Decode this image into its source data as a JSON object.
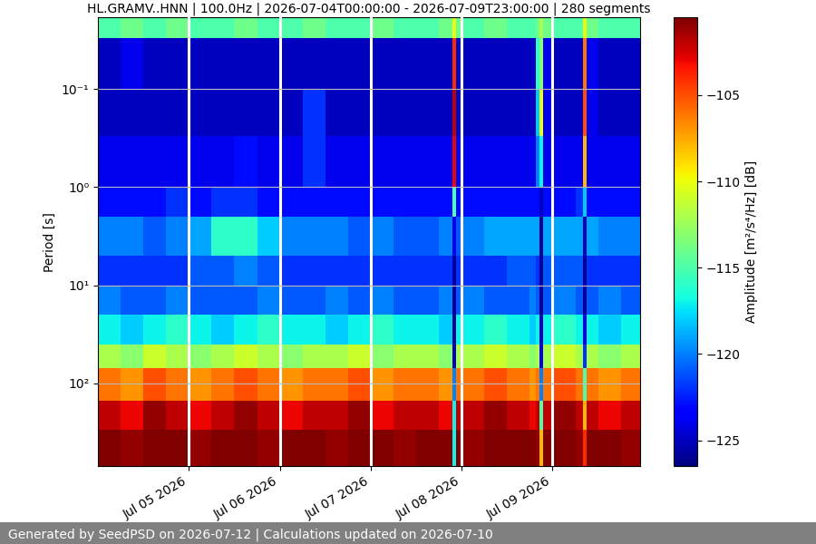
{
  "chart_data": {
    "type": "heatmap",
    "title": "HL.GRAMV..HNN | 100.0Hz | 2026-07-04T00:00:00 - 2026-07-09T23:00:00 | 280 segments",
    "ylabel": "Period [s]",
    "footer": "Generated by SeedPSD on 2026-07-12 | Calculations updated on 2026-07-10",
    "log": "y",
    "grid": true,
    "x_edges": [
      "2026-07-04T00:00",
      "2026-07-04T06:00",
      "2026-07-04T12:00",
      "2026-07-04T18:00",
      "2026-07-05T00:00",
      "2026-07-05T06:00",
      "2026-07-05T12:00",
      "2026-07-05T18:00",
      "2026-07-06T00:00",
      "2026-07-06T06:00",
      "2026-07-06T12:00",
      "2026-07-06T18:00",
      "2026-07-07T00:00",
      "2026-07-07T06:00",
      "2026-07-07T12:00",
      "2026-07-07T18:00",
      "2026-07-07T21:30",
      "2026-07-07T22:30",
      "2026-07-08T00:00",
      "2026-07-08T06:00",
      "2026-07-08T12:00",
      "2026-07-08T18:00",
      "2026-07-08T19:30",
      "2026-07-08T20:30",
      "2026-07-08T21:30",
      "2026-07-09T00:00",
      "2026-07-09T06:00",
      "2026-07-09T08:00",
      "2026-07-09T09:00",
      "2026-07-09T12:00",
      "2026-07-09T18:00",
      "2026-07-09T23:00"
    ],
    "y_edges": [
      0.0186,
      0.03,
      0.1,
      0.3,
      1,
      2,
      5,
      10,
      20,
      40,
      70,
      150,
      300,
      700
    ],
    "cells": [
      [
        -115,
        -114,
        -115,
        -114,
        -115,
        -115,
        -114,
        -115,
        -115,
        -114,
        -115,
        -115,
        -114,
        -115,
        -115,
        -114,
        -110,
        -114,
        -115,
        -114,
        -115,
        -115,
        -114,
        -112,
        -114,
        -115,
        -115,
        -110,
        -114,
        -115,
        -115
      ],
      [
        -125,
        -124,
        -125,
        -125,
        -125,
        -125,
        -125,
        -125,
        -125,
        -125,
        -125,
        -125,
        -125,
        -125,
        -125,
        -125,
        -104,
        -125,
        -125,
        -125,
        -125,
        -125,
        -116,
        -113,
        -124,
        -125,
        -125,
        -106,
        -124,
        -125,
        -125
      ],
      [
        -125,
        -125,
        -125,
        -125,
        -125,
        -125,
        -125,
        -125,
        -125,
        -122,
        -125,
        -125,
        -125,
        -125,
        -125,
        -125,
        -102,
        -125,
        -125,
        -125,
        -125,
        -125,
        -118,
        -110,
        -124,
        -125,
        -125,
        -105,
        -124,
        -125,
        -125
      ],
      [
        -124,
        -124,
        -124,
        -124,
        -124,
        -124,
        -123,
        -124,
        -124,
        -122,
        -124,
        -124,
        -124,
        -124,
        -124,
        -124,
        -103,
        -124,
        -124,
        -124,
        -124,
        -124,
        -120,
        -117,
        -124,
        -124,
        -124,
        -108,
        -124,
        -124,
        -124
      ],
      [
        -123,
        -123,
        -123,
        -122,
        -123,
        -122,
        -122,
        -123,
        -123,
        -123,
        -123,
        -123,
        -123,
        -123,
        -123,
        -123,
        -115,
        -123,
        -123,
        -123,
        -123,
        -123,
        -123,
        -125,
        -123,
        -123,
        -122,
        -118,
        -123,
        -123,
        -123
      ],
      [
        -120,
        -120,
        -121,
        -120,
        -119,
        -116,
        -116,
        -118,
        -120,
        -120,
        -120,
        -121,
        -120,
        -121,
        -121,
        -120,
        -124,
        -121,
        -120,
        -119,
        -119,
        -119,
        -119,
        -126,
        -119,
        -119,
        -119,
        -125,
        -119,
        -120,
        -120
      ],
      [
        -122,
        -122,
        -122,
        -122,
        -121,
        -121,
        -120,
        -121,
        -122,
        -122,
        -122,
        -122,
        -122,
        -122,
        -122,
        -122,
        -126,
        -122,
        -122,
        -122,
        -121,
        -121,
        -122,
        -126,
        -121,
        -121,
        -121,
        -126,
        -122,
        -122,
        -122
      ],
      [
        -120,
        -121,
        -121,
        -120,
        -121,
        -121,
        -121,
        -120,
        -121,
        -121,
        -120,
        -121,
        -120,
        -121,
        -121,
        -120,
        -126,
        -121,
        -120,
        -121,
        -121,
        -120,
        -121,
        -126,
        -121,
        -120,
        -121,
        -126,
        -121,
        -120,
        -121
      ],
      [
        -117,
        -118,
        -117,
        -116,
        -117,
        -118,
        -117,
        -116,
        -117,
        -117,
        -118,
        -117,
        -116,
        -117,
        -117,
        -118,
        -126,
        -117,
        -117,
        -116,
        -117,
        -118,
        -117,
        -125,
        -117,
        -116,
        -117,
        -124,
        -117,
        -118,
        -117
      ],
      [
        -112,
        -113,
        -111,
        -112,
        -113,
        -112,
        -111,
        -112,
        -113,
        -112,
        -112,
        -111,
        -113,
        -112,
        -112,
        -113,
        -125,
        -112,
        -112,
        -111,
        -112,
        -113,
        -112,
        -124,
        -112,
        -111,
        -112,
        -122,
        -112,
        -113,
        -112
      ],
      [
        -106,
        -107,
        -105,
        -106,
        -107,
        -106,
        -105,
        -106,
        -107,
        -106,
        -106,
        -105,
        -107,
        -106,
        -106,
        -107,
        -120,
        -106,
        -106,
        -105,
        -106,
        -107,
        -106,
        -120,
        -106,
        -105,
        -106,
        -115,
        -106,
        -107,
        -106
      ],
      [
        -102,
        -103,
        -101,
        -102,
        -103,
        -102,
        -101,
        -102,
        -103,
        -102,
        -102,
        -101,
        -103,
        -102,
        -102,
        -103,
        -117,
        -102,
        -102,
        -101,
        -102,
        -103,
        -102,
        -115,
        -102,
        -101,
        -102,
        -108,
        -102,
        -103,
        -102
      ],
      [
        -100,
        -101,
        -100,
        -100,
        -101,
        -100,
        -100,
        -101,
        -100,
        -100,
        -101,
        -100,
        -100,
        -101,
        -100,
        -100,
        -117,
        -100,
        -101,
        -100,
        -100,
        -100,
        -101,
        -108,
        -100,
        -100,
        -101,
        -104,
        -100,
        -100,
        -101
      ]
    ],
    "xlim": [
      "2026-07-04T00:00",
      "2026-07-09T23:00"
    ],
    "xticks": [
      {
        "value": "2026-07-05T00:00",
        "label": "Jul 05 2026"
      },
      {
        "value": "2026-07-06T00:00",
        "label": "Jul 06 2026"
      },
      {
        "value": "2026-07-07T00:00",
        "label": "Jul 07 2026"
      },
      {
        "value": "2026-07-08T00:00",
        "label": "Jul 08 2026"
      },
      {
        "value": "2026-07-09T00:00",
        "label": "Jul 09 2026"
      }
    ],
    "ylim": [
      700,
      0.0186
    ],
    "yticks": [
      {
        "value": 0.1,
        "label": "10⁻¹"
      },
      {
        "value": 1,
        "label": "10⁰"
      },
      {
        "value": 10,
        "label": "10¹"
      },
      {
        "value": 100,
        "label": "10²"
      }
    ],
    "colorbar": {
      "label": "Amplitude [m²/s⁴/Hz] [dB]",
      "clim": [
        -126.5,
        -100.5
      ],
      "ticks": [
        {
          "value": -105,
          "label": "−105"
        },
        {
          "value": -110,
          "label": "−110"
        },
        {
          "value": -115,
          "label": "−115"
        },
        {
          "value": -120,
          "label": "−120"
        },
        {
          "value": -125,
          "label": "−125"
        }
      ]
    }
  }
}
